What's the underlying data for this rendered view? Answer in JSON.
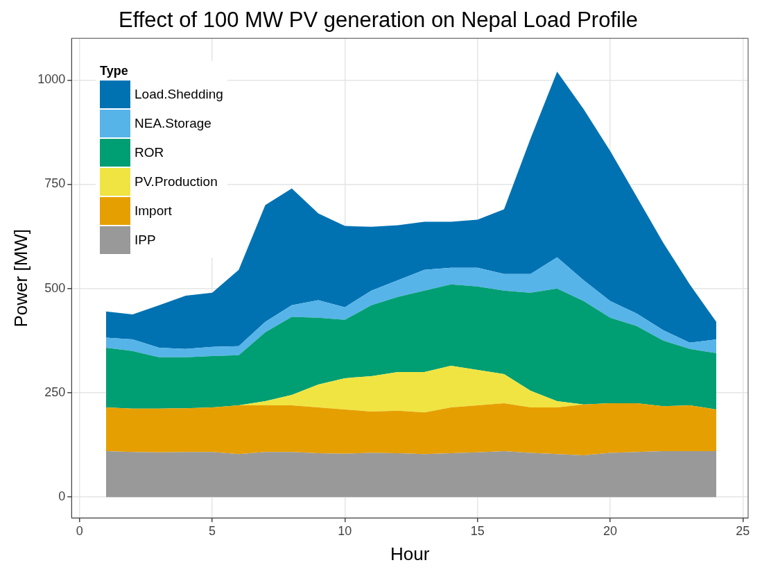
{
  "chart_data": {
    "type": "area",
    "title": "Effect of 100 MW PV generation on Nepal Load Profile",
    "xlabel": "Hour",
    "ylabel": "Power [MW]",
    "legend_title": "Type",
    "legend": "top left",
    "grid": true,
    "stacked": true,
    "x": [
      1,
      2,
      3,
      4,
      5,
      6,
      7,
      8,
      9,
      10,
      11,
      12,
      13,
      14,
      15,
      16,
      17,
      18,
      19,
      20,
      21,
      22,
      23,
      24
    ],
    "xlim": [
      -0.3,
      25.2
    ],
    "xticks": [
      0,
      5,
      10,
      15,
      20,
      25
    ],
    "ylim": [
      -50,
      1100
    ],
    "yticks": [
      0,
      250,
      500,
      750,
      1000
    ],
    "series": [
      {
        "name": "IPP",
        "color": "#999999",
        "values": [
          110,
          108,
          107,
          108,
          108,
          103,
          108,
          108,
          105,
          104,
          106,
          105,
          103,
          105,
          107,
          110,
          106,
          103,
          100,
          106,
          108,
          110,
          110,
          110
        ]
      },
      {
        "name": "Import",
        "color": "#e69f00",
        "values": [
          105,
          104,
          105,
          105,
          107,
          117,
          112,
          112,
          110,
          106,
          99,
          102,
          100,
          110,
          113,
          115,
          109,
          112,
          122,
          119,
          117,
          108,
          110,
          100
        ]
      },
      {
        "name": "PV.Production",
        "color": "#f0e442",
        "values": [
          0,
          0,
          0,
          0,
          0,
          0,
          10,
          25,
          55,
          75,
          85,
          93,
          97,
          100,
          85,
          70,
          40,
          15,
          0,
          0,
          0,
          0,
          0,
          0
        ]
      },
      {
        "name": "ROR",
        "color": "#009e73",
        "values": [
          143,
          138,
          123,
          122,
          123,
          120,
          165,
          187,
          160,
          140,
          170,
          180,
          195,
          195,
          200,
          200,
          235,
          270,
          248,
          205,
          185,
          157,
          135,
          135
        ]
      },
      {
        "name": "NEA.Storage",
        "color": "#56b4e9",
        "values": [
          24,
          28,
          23,
          20,
          22,
          22,
          25,
          28,
          42,
          30,
          35,
          40,
          50,
          40,
          45,
          40,
          45,
          75,
          50,
          40,
          30,
          25,
          15,
          33
        ]
      },
      {
        "name": "Load.Shedding",
        "color": "#0072b2",
        "values": [
          63,
          60,
          102,
          128,
          130,
          183,
          280,
          280,
          208,
          195,
          153,
          132,
          115,
          110,
          115,
          155,
          325,
          445,
          410,
          360,
          280,
          210,
          140,
          42
        ]
      }
    ]
  }
}
